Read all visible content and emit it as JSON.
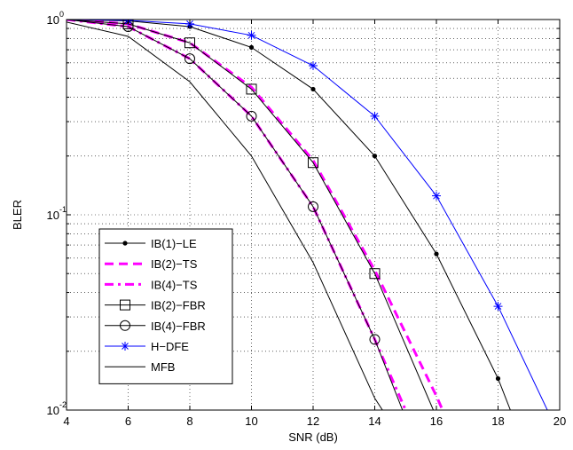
{
  "chart_data": {
    "type": "line",
    "title": "",
    "xlabel": "SNR (dB)",
    "ylabel": "BLER",
    "xlim": [
      4,
      20
    ],
    "ylim": [
      0.01,
      1
    ],
    "yscale": "log",
    "grid": true,
    "legend_position": "bottom-left",
    "x_ticks": [
      4,
      6,
      8,
      10,
      12,
      14,
      16,
      18,
      20
    ],
    "y_ticks": [
      {
        "value": 1,
        "mantissa": "10",
        "exponent": "0"
      },
      {
        "value": 0.1,
        "mantissa": "10",
        "exponent": "-1"
      },
      {
        "value": 0.01,
        "mantissa": "10",
        "exponent": "-2"
      }
    ],
    "series": [
      {
        "name": "IB(1)−LE",
        "color": "#000000",
        "style": "solid",
        "marker": "dot",
        "x": [
          4,
          6,
          8,
          10,
          12,
          14,
          16,
          18,
          18.4
        ],
        "y": [
          1.0,
          0.985,
          0.92,
          0.72,
          0.44,
          0.2,
          0.063,
          0.0145,
          0.01
        ]
      },
      {
        "name": "IB(2)−TS",
        "color": "#ff00ff",
        "style": "dashed",
        "marker": "none",
        "x": [
          4,
          6,
          8,
          10,
          12,
          14,
          16,
          16.2
        ],
        "y": [
          1.0,
          0.95,
          0.76,
          0.45,
          0.19,
          0.052,
          0.0118,
          0.01
        ]
      },
      {
        "name": "IB(4)−TS",
        "color": "#ff00ff",
        "style": "dashdot",
        "marker": "none",
        "x": [
          4,
          6,
          8,
          10,
          12,
          14,
          15
        ],
        "y": [
          1.0,
          0.92,
          0.63,
          0.32,
          0.11,
          0.023,
          0.01
        ]
      },
      {
        "name": "IB(2)−FBR",
        "color": "#000000",
        "style": "solid",
        "marker": "square",
        "x": [
          4,
          6,
          8,
          10,
          12,
          14,
          15.9
        ],
        "y": [
          1.0,
          0.95,
          0.76,
          0.44,
          0.185,
          0.05,
          0.01
        ]
      },
      {
        "name": "IB(4)−FBR",
        "color": "#000000",
        "style": "solid",
        "marker": "circle",
        "x": [
          4,
          6,
          8,
          10,
          12,
          14,
          14.9
        ],
        "y": [
          1.0,
          0.92,
          0.63,
          0.32,
          0.11,
          0.023,
          0.01
        ]
      },
      {
        "name": "H−DFE",
        "color": "#0000ff",
        "style": "solid",
        "marker": "star",
        "x": [
          4,
          6,
          8,
          10,
          12,
          14,
          16,
          18,
          19.6
        ],
        "y": [
          1.0,
          0.99,
          0.95,
          0.83,
          0.58,
          0.32,
          0.125,
          0.034,
          0.01
        ]
      },
      {
        "name": "MFB",
        "color": "#000000",
        "style": "solid",
        "marker": "none",
        "x": [
          4,
          6,
          8,
          10,
          12,
          14,
          14.25
        ],
        "y": [
          0.97,
          0.82,
          0.48,
          0.2,
          0.057,
          0.0115,
          0.01
        ]
      }
    ]
  }
}
